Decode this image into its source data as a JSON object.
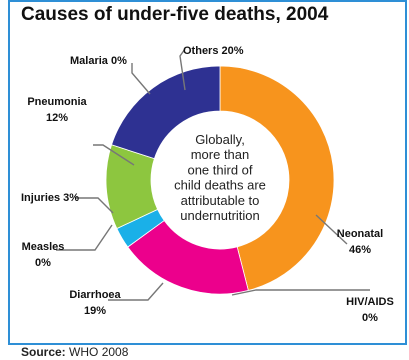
{
  "chart_data": {
    "type": "pie",
    "subtype": "donut",
    "title": "Causes of under-five deaths, 2004",
    "categories": [
      "Neonatal",
      "HIV/AIDS",
      "Diarrhoea",
      "Measles",
      "Injuries",
      "Pneumonia",
      "Malaria",
      "Others"
    ],
    "values": [
      46,
      0,
      19,
      0,
      3,
      12,
      0,
      20
    ],
    "labels": [
      {
        "name": "Neonatal",
        "percent": "46%"
      },
      {
        "name": "HIV/AIDS",
        "percent": "0%"
      },
      {
        "name": "Diarrhoea",
        "percent": "19%"
      },
      {
        "name": "Measles",
        "percent": "0%"
      },
      {
        "name": "Injuries",
        "percent": "3%"
      },
      {
        "name": "Pneumonia",
        "percent": "12%"
      },
      {
        "name": "Malaria",
        "percent": "0%"
      },
      {
        "name": "Others",
        "percent": "20%"
      }
    ],
    "colors": [
      "#f7941d",
      "#ffffff",
      "#ec008c",
      "#1e73be",
      "#1ab0e8",
      "#8dc63f",
      "#d8d8d8",
      "#2e3192"
    ],
    "center_text": [
      "Globally,",
      "more than",
      "one third of",
      "child deaths are",
      "attributable to",
      "undernutrition"
    ]
  },
  "source": {
    "label": "Source:",
    "text": "WHO 2008"
  }
}
